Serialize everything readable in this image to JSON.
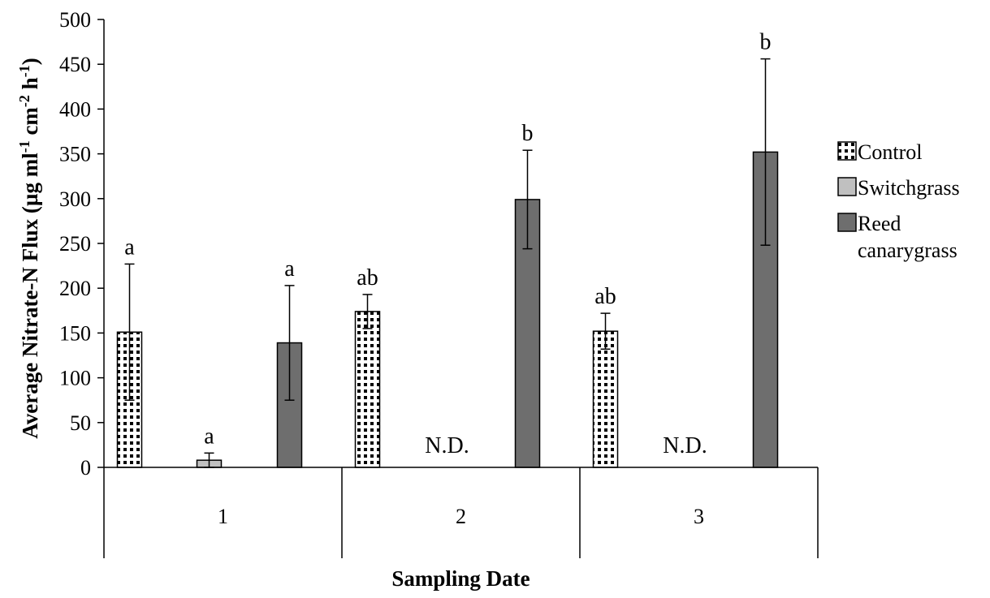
{
  "chart_data": {
    "type": "bar",
    "xlabel": "Sampling Date",
    "ylabel": {
      "parts": [
        "Average Nitrate-N Flux (µg ml",
        "-1",
        " cm",
        "-2",
        " h",
        "-1",
        ")"
      ]
    },
    "ylim": [
      0,
      500
    ],
    "yticks": [
      "0",
      "50",
      "100",
      "150",
      "200",
      "250",
      "300",
      "350",
      "400",
      "450",
      "500"
    ],
    "categories": [
      "1",
      "2",
      "3"
    ],
    "series": [
      {
        "name": "Control",
        "values": [
          151,
          174,
          152
        ],
        "errors": [
          76,
          19,
          20
        ],
        "letters": [
          "a",
          "ab",
          "ab"
        ]
      },
      {
        "name": "Switchgrass",
        "values": [
          8,
          null,
          null
        ],
        "errors": [
          8,
          null,
          null
        ],
        "letters": [
          "a",
          "N.D.",
          "N.D."
        ]
      },
      {
        "name": "Reed canarygrass",
        "values": [
          139,
          299,
          352
        ],
        "errors": [
          64,
          55,
          104
        ],
        "letters": [
          "a",
          "b",
          "b"
        ]
      }
    ],
    "legend": {
      "position": "right",
      "entries": [
        {
          "lines": [
            "Control"
          ]
        },
        {
          "lines": [
            "Switchgrass"
          ]
        },
        {
          "lines": [
            "Reed",
            "canarygrass"
          ]
        }
      ]
    },
    "colors": {
      "switchgrass": "#c0c0c0",
      "reed": "#6e6e6e",
      "control_dots": "#000000"
    }
  }
}
